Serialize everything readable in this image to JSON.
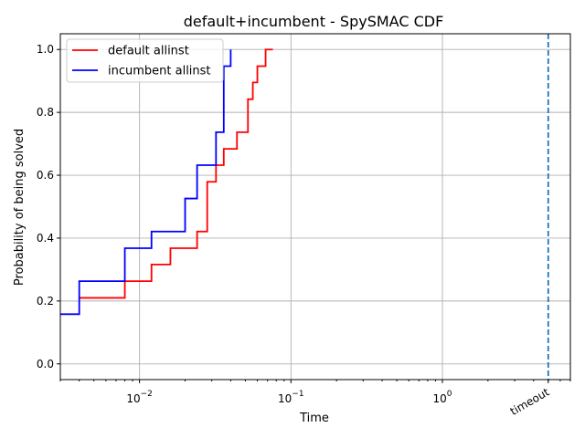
{
  "chart_data": {
    "type": "line",
    "title": "default+incumbent - SpySMAC CDF",
    "xlabel": "Time",
    "ylabel": "Probability of being solved",
    "x_scale": "log",
    "xlim": [
      0.003,
      7.0
    ],
    "ylim": [
      -0.05,
      1.05
    ],
    "grid": true,
    "legend_position": "top-left",
    "x_ticks": [
      {
        "value": 0.01,
        "base": "10",
        "exp": "−2"
      },
      {
        "value": 0.1,
        "base": "10",
        "exp": "−1"
      },
      {
        "value": 1,
        "base": "10",
        "exp": "0"
      }
    ],
    "y_ticks": [
      {
        "value": 0.0,
        "label": "0.0"
      },
      {
        "value": 0.2,
        "label": "0.2"
      },
      {
        "value": 0.4,
        "label": "0.4"
      },
      {
        "value": 0.6,
        "label": "0.6"
      },
      {
        "value": 0.8,
        "label": "0.8"
      },
      {
        "value": 1.0,
        "label": "1.0"
      }
    ],
    "timeout": {
      "value": 5.0,
      "label": "timeout",
      "color": "#1f77b4"
    },
    "series": [
      {
        "name": "default allinst",
        "color": "#ff0000",
        "x": [
          0.004,
          0.004,
          0.008,
          0.008,
          0.012,
          0.012,
          0.016,
          0.016,
          0.024,
          0.024,
          0.028,
          0.028,
          0.032,
          0.032,
          0.036,
          0.036,
          0.044,
          0.044,
          0.052,
          0.052,
          0.056,
          0.056,
          0.06,
          0.06,
          0.068,
          0.068,
          0.076
        ],
        "y": [
          0.21,
          0.21,
          0.21,
          0.263,
          0.263,
          0.316,
          0.316,
          0.368,
          0.368,
          0.421,
          0.421,
          0.579,
          0.579,
          0.632,
          0.632,
          0.684,
          0.684,
          0.737,
          0.737,
          0.842,
          0.842,
          0.895,
          0.895,
          0.947,
          0.947,
          1.0,
          1.0
        ]
      },
      {
        "name": "incumbent allinst",
        "color": "#0000ff",
        "x": [
          0.003,
          0.004,
          0.004,
          0.008,
          0.008,
          0.012,
          0.012,
          0.02,
          0.02,
          0.024,
          0.024,
          0.032,
          0.032,
          0.036,
          0.036,
          0.04,
          0.04
        ],
        "y": [
          0.158,
          0.158,
          0.263,
          0.263,
          0.368,
          0.368,
          0.421,
          0.421,
          0.526,
          0.526,
          0.632,
          0.632,
          0.737,
          0.737,
          0.947,
          0.947,
          1.0
        ]
      }
    ]
  }
}
